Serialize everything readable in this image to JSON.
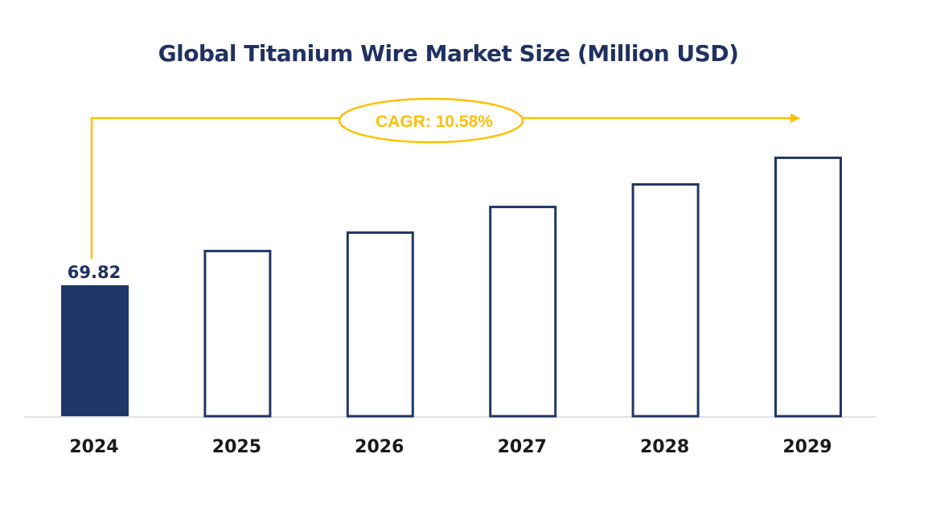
{
  "chart_data": {
    "type": "bar",
    "title": "Global Titanium Wire Market Size (Million USD)",
    "categories": [
      "2024",
      "2025",
      "2026",
      "2027",
      "2028",
      "2029"
    ],
    "values": [
      69.82,
      88.7,
      98.5,
      112.2,
      124.2,
      138.4
    ],
    "data_labels": [
      "69.82",
      "",
      "",
      "",
      "",
      ""
    ],
    "annotation": "CAGR: 10.58%",
    "xlabel": "",
    "ylabel": "",
    "ylim": [
      0,
      150
    ],
    "grid": false,
    "legend": "none",
    "colors": {
      "highlight_bar": "#1f3768",
      "outline_bar": "#1f3768",
      "annotation": "#ffc000",
      "title": "#1f3163",
      "axis": "#d9d9d9"
    }
  }
}
